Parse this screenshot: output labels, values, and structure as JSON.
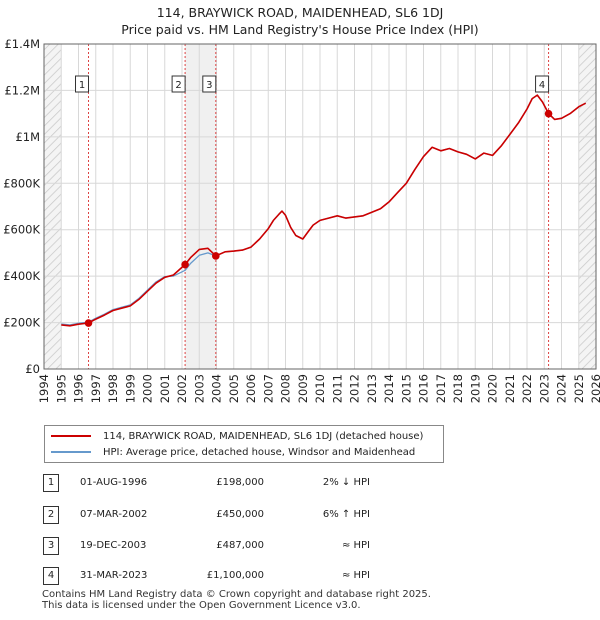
{
  "title_line1": "114, BRAYWICK ROAD, MAIDENHEAD, SL6 1DJ",
  "title_line2": "Price paid vs. HM Land Registry's House Price Index (HPI)",
  "colors": {
    "property": "#cc0000",
    "hpi": "#6699cc",
    "grid": "#d8d8d8",
    "shade": "#f0f0f0"
  },
  "legend": {
    "property_label": "114, BRAYWICK ROAD, MAIDENHEAD, SL6 1DJ (detached house)",
    "hpi_label": "HPI: Average price, detached house, Windsor and Maidenhead"
  },
  "sales": [
    {
      "num": "1",
      "date": "01-AUG-1996",
      "price": "£198,000",
      "rel": "2% ↓ HPI",
      "t": 1996.58,
      "v": 198000
    },
    {
      "num": "2",
      "date": "07-MAR-2002",
      "price": "£450,000",
      "rel": "6% ↑ HPI",
      "t": 2002.18,
      "v": 450000
    },
    {
      "num": "3",
      "date": "19-DEC-2003",
      "price": "£487,000",
      "rel": "≈ HPI",
      "t": 2003.96,
      "v": 487000
    },
    {
      "num": "4",
      "date": "31-MAR-2023",
      "price": "£1,100,000",
      "rel": "≈ HPI",
      "t": 2023.25,
      "v": 1100000
    }
  ],
  "footer_line1": "Contains HM Land Registry data © Crown copyright and database right 2025.",
  "footer_line2": "This data is licensed under the Open Government Licence v3.0.",
  "chart_data": {
    "type": "line",
    "title": "114, BRAYWICK ROAD, MAIDENHEAD, SL6 1DJ — Price paid vs. HM Land Registry's House Price Index (HPI)",
    "xlim": [
      1994,
      2026
    ],
    "ylim": [
      0,
      1400000
    ],
    "y_ticks": [
      0,
      200000,
      400000,
      600000,
      800000,
      1000000,
      1200000,
      1400000
    ],
    "y_tick_labels": [
      "£0",
      "£200K",
      "£400K",
      "£600K",
      "£800K",
      "£1M",
      "£1.2M",
      "£1.4M"
    ],
    "x_ticks": [
      1994,
      1995,
      1996,
      1997,
      1998,
      1999,
      2000,
      2001,
      2002,
      2003,
      2004,
      2005,
      2006,
      2007,
      2008,
      2009,
      2010,
      2011,
      2012,
      2013,
      2014,
      2015,
      2016,
      2017,
      2018,
      2019,
      2020,
      2021,
      2022,
      2023,
      2024,
      2025,
      2026
    ],
    "data_start": 1995,
    "data_end": 2025.4,
    "hatch_before": 1995,
    "hatch_after": 2025,
    "series": [
      {
        "name": "114, BRAYWICK ROAD, MAIDENHEAD, SL6 1DJ (detached house)",
        "t": [
          1995.0,
          1995.5,
          1996.0,
          1996.58,
          1997.0,
          1997.5,
          1998.0,
          1998.5,
          1999.0,
          1999.5,
          2000.0,
          2000.5,
          2001.0,
          2001.5,
          2002.18,
          2002.5,
          2003.0,
          2003.5,
          2003.96,
          2004.5,
          2005.0,
          2005.5,
          2006.0,
          2006.5,
          2007.0,
          2007.3,
          2007.6,
          2007.8,
          2008.0,
          2008.3,
          2008.6,
          2009.0,
          2009.3,
          2009.6,
          2010.0,
          2010.5,
          2011.0,
          2011.5,
          2012.0,
          2012.5,
          2013.0,
          2013.5,
          2014.0,
          2014.5,
          2015.0,
          2015.5,
          2016.0,
          2016.5,
          2017.0,
          2017.5,
          2018.0,
          2018.5,
          2019.0,
          2019.5,
          2020.0,
          2020.5,
          2021.0,
          2021.5,
          2022.0,
          2022.3,
          2022.6,
          2022.9,
          2023.25,
          2023.6,
          2024.0,
          2024.5,
          2025.0,
          2025.4
        ],
        "values": [
          190000,
          186000,
          193000,
          198000,
          215000,
          232000,
          252000,
          262000,
          272000,
          300000,
          335000,
          370000,
          395000,
          405000,
          450000,
          480000,
          515000,
          520000,
          487000,
          505000,
          508000,
          512000,
          525000,
          560000,
          605000,
          640000,
          665000,
          680000,
          662000,
          610000,
          575000,
          560000,
          590000,
          620000,
          640000,
          650000,
          660000,
          650000,
          655000,
          660000,
          675000,
          690000,
          720000,
          760000,
          800000,
          860000,
          915000,
          955000,
          940000,
          950000,
          935000,
          925000,
          905000,
          930000,
          920000,
          960000,
          1010000,
          1060000,
          1120000,
          1165000,
          1180000,
          1150000,
          1100000,
          1075000,
          1080000,
          1100000,
          1130000,
          1145000
        ]
      },
      {
        "name": "HPI: Average price, detached house, Windsor and Maidenhead",
        "t": [
          1995.0,
          1995.5,
          1996.0,
          1996.58,
          1997.0,
          1997.5,
          1998.0,
          1998.5,
          1999.0,
          1999.5,
          2000.0,
          2000.5,
          2001.0,
          2001.5,
          2002.18,
          2002.5,
          2003.0,
          2003.5,
          2003.96,
          2004.5,
          2005.0,
          2005.5,
          2006.0,
          2006.5,
          2007.0,
          2007.3,
          2007.6,
          2007.8,
          2008.0,
          2008.3,
          2008.6,
          2009.0,
          2009.3,
          2009.6,
          2010.0,
          2010.5,
          2011.0,
          2011.5,
          2012.0,
          2012.5,
          2013.0,
          2013.5,
          2014.0,
          2014.5,
          2015.0,
          2015.5,
          2016.0,
          2016.5,
          2017.0,
          2017.5,
          2018.0,
          2018.5,
          2019.0,
          2019.5,
          2020.0,
          2020.5,
          2021.0,
          2021.5,
          2022.0,
          2022.3,
          2022.6,
          2022.9,
          2023.25,
          2023.6,
          2024.0,
          2024.5,
          2025.0,
          2025.4
        ],
        "values": [
          194000,
          190000,
          197000,
          202000,
          219000,
          236000,
          256000,
          266000,
          276000,
          304000,
          340000,
          375000,
          398000,
          400000,
          425000,
          455000,
          490000,
          500000,
          487000,
          505000,
          508000,
          512000,
          525000,
          560000,
          605000,
          640000,
          665000,
          680000,
          662000,
          610000,
          575000,
          560000,
          590000,
          620000,
          640000,
          650000,
          660000,
          650000,
          655000,
          660000,
          675000,
          690000,
          720000,
          760000,
          800000,
          860000,
          915000,
          955000,
          940000,
          950000,
          935000,
          925000,
          905000,
          930000,
          920000,
          960000,
          1010000,
          1060000,
          1120000,
          1165000,
          1180000,
          1150000,
          1100000,
          1075000,
          1080000,
          1100000,
          1130000,
          1145000
        ]
      }
    ]
  }
}
